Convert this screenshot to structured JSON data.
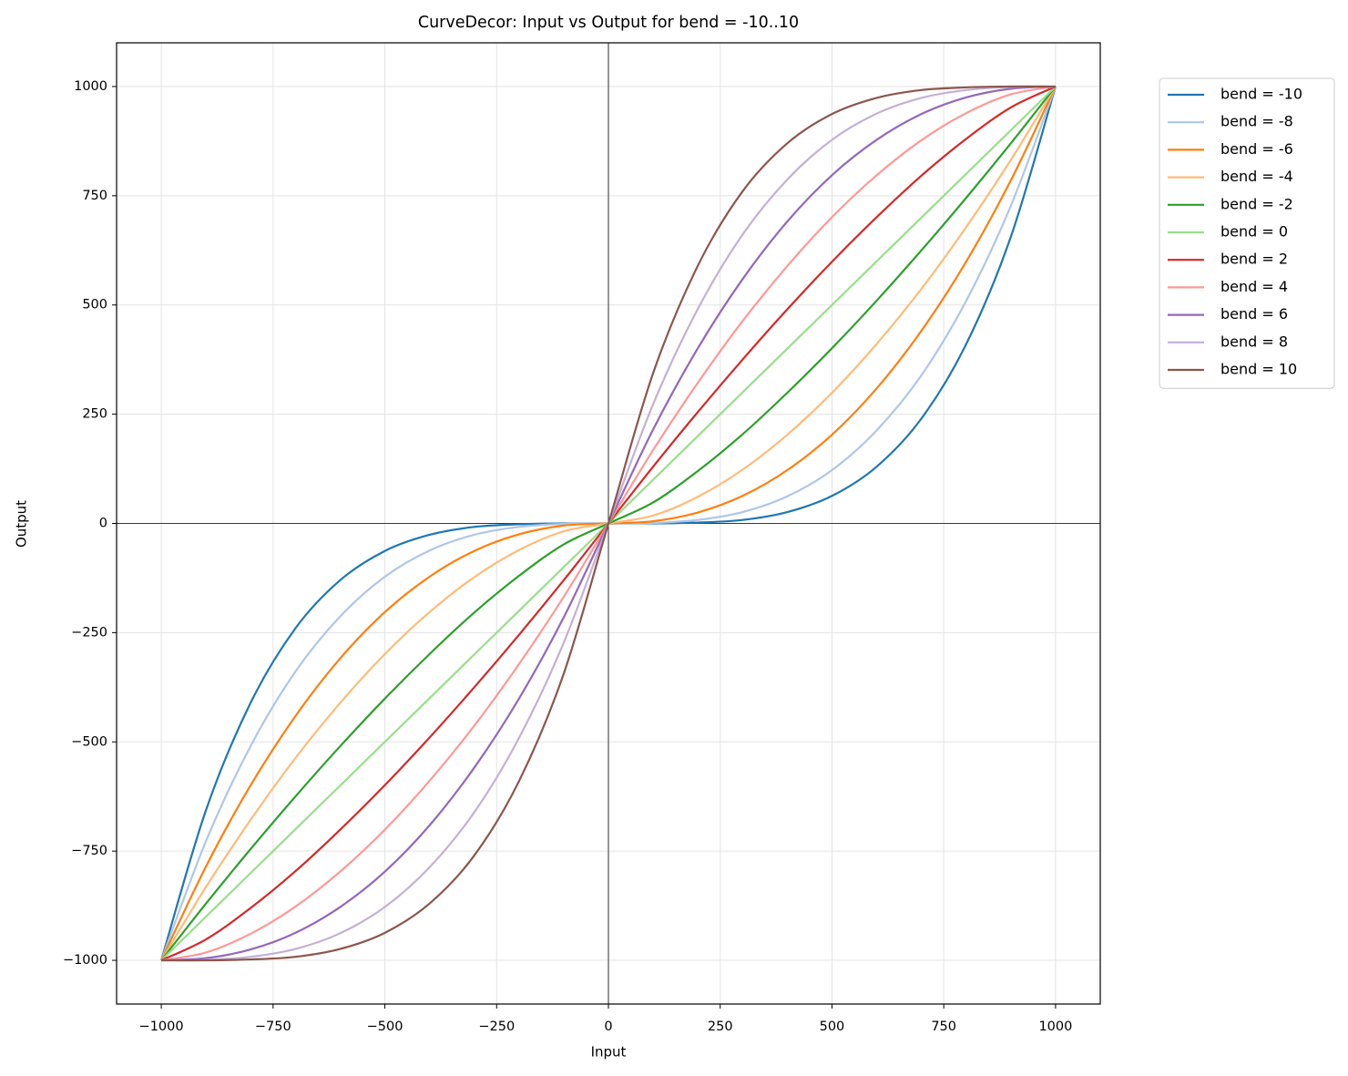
{
  "chart_data": {
    "type": "line",
    "title": "CurveDecor: Input vs Output for bend = -10..10",
    "x_label": "Input",
    "y_label": "Output",
    "x": [
      -1000,
      -900,
      -800,
      -700,
      -600,
      -500,
      -400,
      -300,
      -200,
      -100,
      0,
      100,
      200,
      300,
      400,
      500,
      600,
      700,
      800,
      900,
      1000
    ],
    "series": [
      {
        "name": "bend = -10",
        "color": "#1f77b4",
        "values": [
          -1000,
          -656,
          -410,
          -240,
          -130,
          -63,
          -26,
          -8,
          -2,
          0,
          0,
          0,
          2,
          8,
          26,
          63,
          130,
          240,
          410,
          656,
          1000
        ]
      },
      {
        "name": "bend = -8",
        "color": "#aec7e8",
        "values": [
          -1000,
          -727,
          -509,
          -339,
          -213,
          -122,
          -62,
          -26,
          -8,
          -1,
          0,
          1,
          8,
          26,
          62,
          122,
          213,
          339,
          509,
          727,
          1000
        ]
      },
      {
        "name": "bend = -6",
        "color": "#ff7f0e",
        "values": [
          -1000,
          -785,
          -599,
          -441,
          -309,
          -203,
          -122,
          -63,
          -25,
          -5,
          0,
          5,
          25,
          63,
          122,
          203,
          309,
          441,
          599,
          785,
          1000
        ]
      },
      {
        "name": "bend = -4",
        "color": "#ffbb78",
        "values": [
          -1000,
          -832,
          -678,
          -537,
          -411,
          -299,
          -203,
          -123,
          -61,
          -18,
          0,
          18,
          61,
          123,
          203,
          299,
          411,
          537,
          678,
          832,
          1000
        ]
      },
      {
        "name": "bend = -2",
        "color": "#2ca02c",
        "values": [
          -1000,
          -870,
          -745,
          -625,
          -510,
          -401,
          -299,
          -204,
          -120,
          -48,
          0,
          48,
          120,
          204,
          299,
          401,
          510,
          625,
          745,
          870,
          1000
        ]
      },
      {
        "name": "bend = 0",
        "color": "#98df8a",
        "values": [
          -1000,
          -900,
          -800,
          -700,
          -600,
          -500,
          -400,
          -300,
          -200,
          -100,
          0,
          100,
          200,
          300,
          400,
          500,
          600,
          700,
          800,
          900,
          1000
        ]
      },
      {
        "name": "bend = 2",
        "color": "#d62728",
        "values": [
          -1000,
          -952,
          -880,
          -796,
          -701,
          -599,
          -490,
          -375,
          -255,
          -130,
          0,
          130,
          255,
          375,
          490,
          599,
          701,
          796,
          880,
          952,
          1000
        ]
      },
      {
        "name": "bend = 4",
        "color": "#ff9896",
        "values": [
          -1000,
          -982,
          -939,
          -877,
          -797,
          -701,
          -589,
          -463,
          -322,
          -168,
          0,
          168,
          322,
          463,
          589,
          701,
          797,
          877,
          939,
          982,
          1000
        ]
      },
      {
        "name": "bend = 6",
        "color": "#9467bd",
        "values": [
          -1000,
          -995,
          -975,
          -937,
          -878,
          -797,
          -691,
          -559,
          -401,
          -215,
          0,
          215,
          401,
          559,
          691,
          797,
          878,
          937,
          975,
          995,
          1000
        ]
      },
      {
        "name": "bend = 8",
        "color": "#c5b0d5",
        "values": [
          -1000,
          -999,
          -992,
          -974,
          -938,
          -878,
          -787,
          -661,
          -491,
          -273,
          0,
          273,
          491,
          661,
          787,
          878,
          938,
          974,
          992,
          999,
          1000
        ]
      },
      {
        "name": "bend = 10",
        "color": "#8c564b",
        "values": [
          -1000,
          -1000,
          -998,
          -992,
          -974,
          -937,
          -870,
          -760,
          -590,
          -344,
          0,
          344,
          590,
          760,
          870,
          937,
          974,
          992,
          998,
          1000,
          1000
        ]
      }
    ],
    "xlim": [
      -1100,
      1100
    ],
    "ylim": [
      -1100,
      1100
    ],
    "xticks": [
      {
        "value": -1000,
        "label": "−1000"
      },
      {
        "value": -750,
        "label": "−750"
      },
      {
        "value": -500,
        "label": "−500"
      },
      {
        "value": -250,
        "label": "−250"
      },
      0,
      250,
      500,
      750,
      1000
    ],
    "yticks": [
      {
        "value": -1000,
        "label": "−1000"
      },
      {
        "value": -750,
        "label": "−750"
      },
      {
        "value": -500,
        "label": "−500"
      },
      {
        "value": -250,
        "label": "−250"
      },
      0,
      250,
      500,
      750,
      1000
    ],
    "grid": true,
    "legend": "outside-upper-right"
  }
}
